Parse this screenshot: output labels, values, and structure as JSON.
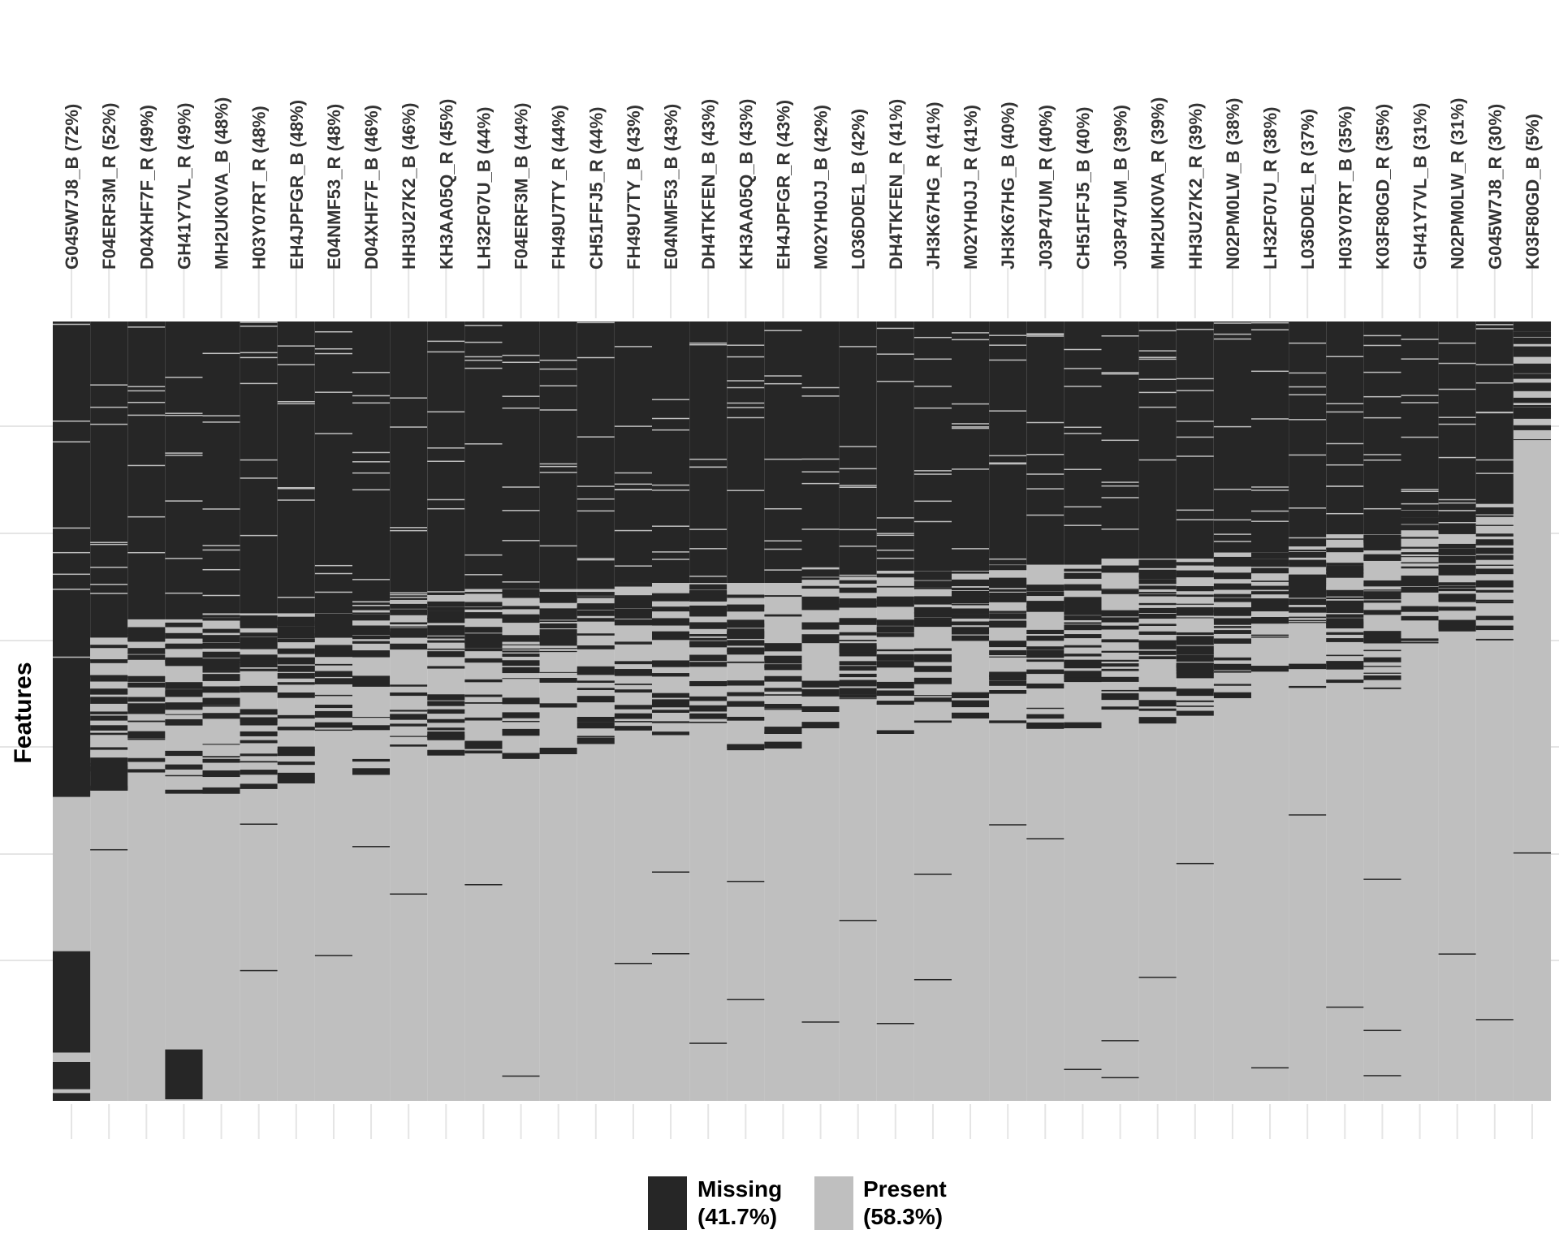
{
  "chart_data": {
    "type": "heatmap",
    "ylabel": "Features",
    "columns": [
      {
        "label": "G045W7J8_B (72%)",
        "missing_pct": 72
      },
      {
        "label": "F04ERF3M_R (52%)",
        "missing_pct": 52
      },
      {
        "label": "D04XHF7F_R (49%)",
        "missing_pct": 49
      },
      {
        "label": "GH41Y7VL_R (49%)",
        "missing_pct": 49
      },
      {
        "label": "MH2UK0VA_B (48%)",
        "missing_pct": 48
      },
      {
        "label": "H03Y07RT_R (48%)",
        "missing_pct": 48
      },
      {
        "label": "EH4JPFGR_B (48%)",
        "missing_pct": 48
      },
      {
        "label": "E04NMF53_R (48%)",
        "missing_pct": 48
      },
      {
        "label": "D04XHF7F_B (46%)",
        "missing_pct": 46
      },
      {
        "label": "HH3U27K2_B (46%)",
        "missing_pct": 46
      },
      {
        "label": "KH3AA05Q_R (45%)",
        "missing_pct": 45
      },
      {
        "label": "LH32F07U_B (44%)",
        "missing_pct": 44
      },
      {
        "label": "F04ERF3M_B (44%)",
        "missing_pct": 44
      },
      {
        "label": "FH49U7TY_R (44%)",
        "missing_pct": 44
      },
      {
        "label": "CH51FFJ5_R (44%)",
        "missing_pct": 44
      },
      {
        "label": "FH49U7TY_B (43%)",
        "missing_pct": 43
      },
      {
        "label": "E04NMF53_B (43%)",
        "missing_pct": 43
      },
      {
        "label": "DH4TKFEN_B (43%)",
        "missing_pct": 43
      },
      {
        "label": "KH3AA05Q_B (43%)",
        "missing_pct": 43
      },
      {
        "label": "EH4JPFGR_R (43%)",
        "missing_pct": 43
      },
      {
        "label": "M02YH0JJ_B (42%)",
        "missing_pct": 42
      },
      {
        "label": "L036D0E1_B (42%)",
        "missing_pct": 42
      },
      {
        "label": "DH4TKFEN_R (41%)",
        "missing_pct": 41
      },
      {
        "label": "JH3K67HG_R (41%)",
        "missing_pct": 41
      },
      {
        "label": "M02YH0JJ_R (41%)",
        "missing_pct": 41
      },
      {
        "label": "JH3K67HG_B (40%)",
        "missing_pct": 40
      },
      {
        "label": "J03P47UM_R (40%)",
        "missing_pct": 40
      },
      {
        "label": "CH51FFJ5_B (40%)",
        "missing_pct": 40
      },
      {
        "label": "J03P47UM_B (39%)",
        "missing_pct": 39
      },
      {
        "label": "MH2UK0VA_R (39%)",
        "missing_pct": 39
      },
      {
        "label": "HH3U27K2_R (39%)",
        "missing_pct": 39
      },
      {
        "label": "N02PM0LW_B (38%)",
        "missing_pct": 38
      },
      {
        "label": "LH32F07U_R (38%)",
        "missing_pct": 38
      },
      {
        "label": "L036D0E1_R (37%)",
        "missing_pct": 37
      },
      {
        "label": "H03Y07RT_B (35%)",
        "missing_pct": 35
      },
      {
        "label": "K03F80GD_R (35%)",
        "missing_pct": 35
      },
      {
        "label": "GH41Y7VL_B (31%)",
        "missing_pct": 31
      },
      {
        "label": "N02PM0LW_R (31%)",
        "missing_pct": 31
      },
      {
        "label": "G045W7J8_R (30%)",
        "missing_pct": 30
      },
      {
        "label": "K03F80GD_B (5%)",
        "missing_pct": 5
      }
    ],
    "legend": [
      {
        "name": "Missing",
        "pct": "(41.7%)",
        "color": "#262626"
      },
      {
        "name": "Present",
        "pct": "(58.3%)",
        "color": "#bfbfbf"
      }
    ],
    "legend_position": "bottom",
    "grid": true
  },
  "colors": {
    "missing": "#262626",
    "present": "#bfbfbf",
    "grid": "#e5e5e5",
    "background": "#ffffff"
  }
}
